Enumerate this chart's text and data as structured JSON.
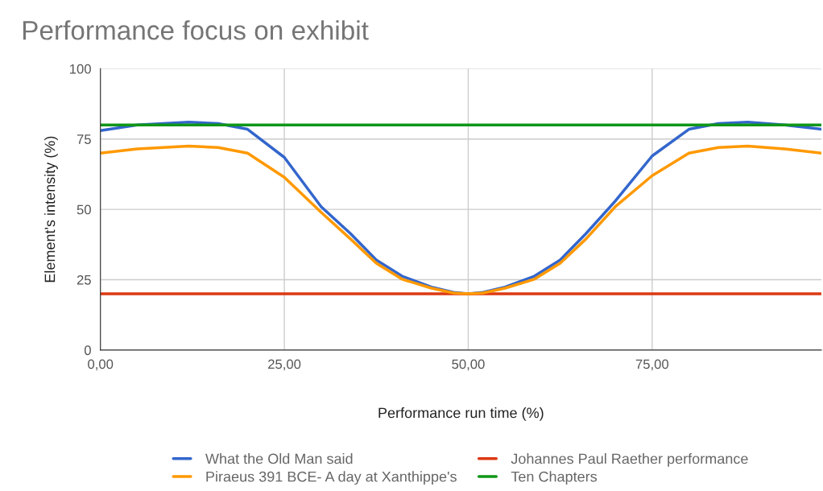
{
  "chart_data": {
    "type": "line",
    "title": "Performance focus on exhibit",
    "xlabel": "Performance run time (%)",
    "ylabel": "Element's intensity (%)",
    "xlim": [
      0,
      98
    ],
    "ylim": [
      0,
      100
    ],
    "xticks": [
      {
        "value": 0,
        "label": "0,00"
      },
      {
        "value": 25,
        "label": "25,00"
      },
      {
        "value": 50,
        "label": "50,00"
      },
      {
        "value": 75,
        "label": "75,00"
      }
    ],
    "yticks": [
      0,
      25,
      50,
      75,
      100
    ],
    "grid": true,
    "legend": "bottom",
    "line_style": "solid",
    "marker": "none",
    "series": [
      {
        "name": "What the Old Man said",
        "color": "#3366cc",
        "x": [
          0,
          5,
          12,
          16,
          20,
          25,
          30,
          34,
          37.5,
          41,
          45,
          48,
          50,
          52,
          55,
          59,
          62.5,
          66,
          70,
          75,
          80,
          84,
          88,
          93,
          98
        ],
        "values": [
          78,
          80,
          81,
          80.5,
          78.5,
          68.5,
          51,
          41.4,
          32,
          26.3,
          22.4,
          20.5,
          20,
          20.5,
          22.4,
          26.3,
          32,
          41.4,
          53,
          69,
          78.5,
          80.5,
          81,
          80,
          78.5
        ]
      },
      {
        "name": "Johannes Paul Raether performance",
        "color": "#dc3912",
        "x": [
          0,
          98
        ],
        "values": [
          20,
          20
        ]
      },
      {
        "name": "Piraeus 391 BCE- A day at Xanthippe's",
        "color": "#ff9900",
        "x": [
          0,
          5,
          12,
          16,
          20,
          25,
          30,
          34,
          37.5,
          41,
          45,
          48,
          50,
          52,
          55,
          59,
          62.5,
          66,
          70,
          75,
          80,
          84,
          88,
          93,
          98
        ],
        "values": [
          70,
          71.5,
          72.5,
          72,
          70,
          61.4,
          49,
          39.5,
          30.9,
          25.2,
          22,
          20.3,
          20,
          20.3,
          22,
          25.2,
          30.9,
          39.5,
          51,
          62,
          70,
          72,
          72.5,
          71.5,
          70
        ]
      },
      {
        "name": "Ten Chapters",
        "color": "#109618",
        "x": [
          0,
          98
        ],
        "values": [
          80,
          80
        ]
      }
    ]
  }
}
